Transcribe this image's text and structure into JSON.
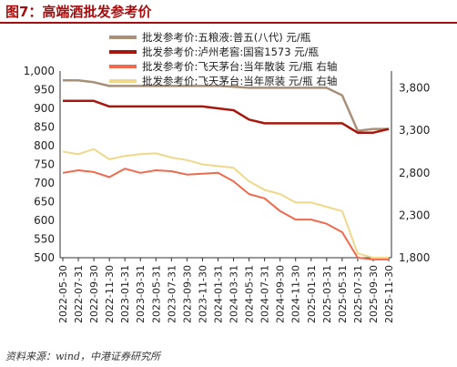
{
  "figure": {
    "title": "图7：高端酒批发参考价",
    "source": "资料来源：wind，中港证券研究所",
    "title_color": "#a40e0e"
  },
  "chart_data": {
    "type": "line",
    "x": [
      "2022-05-30",
      "2022-07-31",
      "2022-09-30",
      "2022-11-30",
      "2023-01-31",
      "2023-03-31",
      "2023-05-31",
      "2023-07-31",
      "2023-09-30",
      "2023-11-30",
      "2024-01-31",
      "2024-03-31",
      "2024-05-31",
      "2024-07-31",
      "2024-09-30",
      "2024-11-30",
      "2025-01-31",
      "2025-03-31",
      "2025-05-31",
      "2025-07-31",
      "2025-09-30",
      "2025-11-30"
    ],
    "left_axis": {
      "ylim": [
        500,
        1000
      ],
      "ticks": [
        "1,000",
        "950",
        "900",
        "850",
        "800",
        "750",
        "700",
        "650",
        "600",
        "550",
        "500"
      ]
    },
    "right_axis": {
      "ylim": [
        1800,
        4000
      ],
      "ticks": [
        "3,800",
        "3,300",
        "2,800",
        "2,300",
        "1,800"
      ]
    },
    "series": [
      {
        "name": "批发参考价:五粮液:普五(八代) 元/瓶",
        "axis": "left",
        "color": "#a88f78",
        "stroke_width": 2.5,
        "values": [
          975,
          975,
          970,
          960,
          960,
          960,
          960,
          960,
          960,
          960,
          960,
          958,
          955,
          955,
          955,
          955,
          955,
          955,
          935,
          840,
          845,
          845
        ]
      },
      {
        "name": "批发参考价:泸州老窖:国窖1573 元/瓶",
        "axis": "left",
        "color": "#a8170f",
        "stroke_width": 2.5,
        "values": [
          920,
          920,
          920,
          905,
          905,
          905,
          905,
          905,
          905,
          905,
          900,
          895,
          870,
          860,
          860,
          860,
          860,
          860,
          860,
          835,
          835,
          845
        ]
      },
      {
        "name": "批发参考价:飞天茅台:当年散装 元/瓶 右轴",
        "axis": "right",
        "color": "#ef6a4c",
        "stroke_width": 2,
        "values": [
          2800,
          2830,
          2810,
          2750,
          2850,
          2800,
          2830,
          2820,
          2780,
          2790,
          2800,
          2700,
          2550,
          2500,
          2350,
          2250,
          2250,
          2200,
          2100,
          1800,
          1780,
          1780
        ]
      },
      {
        "name": "批发参考价:飞天茅台:当年原装 元/瓶 右轴",
        "axis": "right",
        "color": "#f0d88a",
        "stroke_width": 2,
        "values": [
          3050,
          3020,
          3080,
          2960,
          3000,
          3020,
          3030,
          2980,
          2950,
          2900,
          2880,
          2860,
          2700,
          2600,
          2550,
          2450,
          2450,
          2400,
          2350,
          1850,
          1800,
          1800
        ]
      }
    ],
    "legend_position": "top-right"
  }
}
